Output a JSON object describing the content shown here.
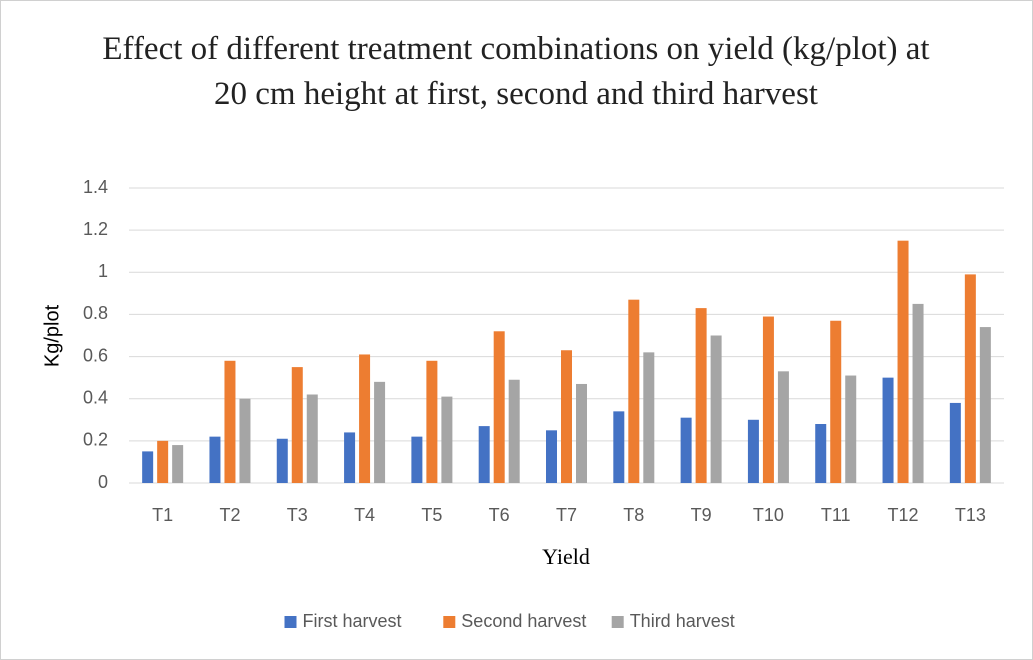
{
  "chart_data": {
    "type": "bar",
    "title": "Effect of different treatment combinations  on yield (kg/plot) at 20 cm height at first, second and third harvest",
    "x_label": "Yield",
    "y_label": "Kg/plot",
    "categories": [
      "T1",
      "T2",
      "T3",
      "T4",
      "T5",
      "T6",
      "T7",
      "T8",
      "T9",
      "T10",
      "T11",
      "T12",
      "T13"
    ],
    "series": [
      {
        "name": "First harvest",
        "color": "#4472c4",
        "values": [
          0.15,
          0.22,
          0.21,
          0.24,
          0.22,
          0.27,
          0.25,
          0.34,
          0.31,
          0.3,
          0.28,
          0.5,
          0.38
        ]
      },
      {
        "name": "Second harvest",
        "color": "#ed7d31",
        "values": [
          0.2,
          0.58,
          0.55,
          0.61,
          0.58,
          0.72,
          0.63,
          0.87,
          0.83,
          0.79,
          0.77,
          1.15,
          0.99
        ]
      },
      {
        "name": "Third harvest",
        "color": "#a5a5a5",
        "values": [
          0.18,
          0.4,
          0.42,
          0.48,
          0.41,
          0.49,
          0.47,
          0.62,
          0.7,
          0.53,
          0.51,
          0.85,
          0.74
        ]
      }
    ],
    "ylim": [
      0,
      1.4
    ],
    "yticks": [
      0,
      0.2,
      0.4,
      0.6,
      0.8,
      1,
      1.2,
      1.4
    ],
    "grid": true,
    "legend": "bottom"
  }
}
